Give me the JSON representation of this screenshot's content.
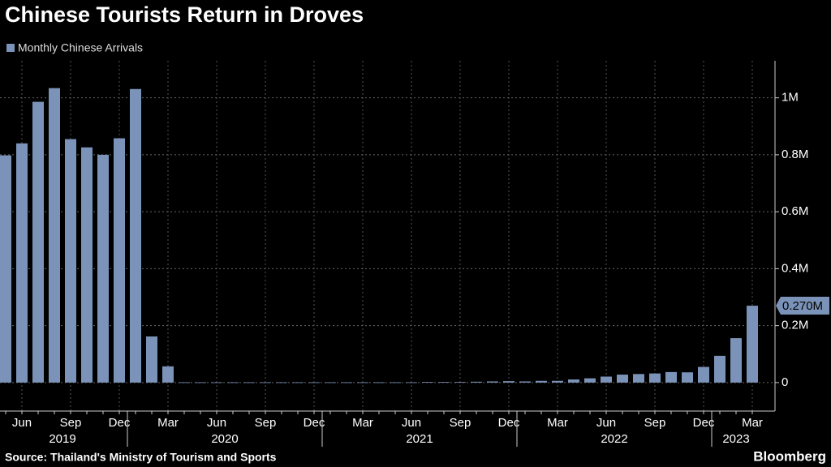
{
  "chart_data": {
    "type": "bar",
    "title": "Chinese Tourists Return in Droves",
    "source": "Source: Thailand's Ministry of Tourism and Sports",
    "logo": "Bloomberg",
    "categories": [
      null,
      "Jun",
      null,
      null,
      "Sep",
      null,
      null,
      "Dec",
      null,
      null,
      "Mar",
      null,
      null,
      "Jun",
      null,
      null,
      "Sep",
      null,
      null,
      "Dec",
      null,
      null,
      "Mar",
      null,
      null,
      "Jun",
      null,
      null,
      "Sep",
      null,
      null,
      "Dec",
      null,
      null,
      "Mar",
      null,
      null,
      "Jun",
      null,
      null,
      "Sep",
      null,
      null,
      "Dec",
      null,
      null,
      "Mar"
    ],
    "groups": [
      {
        "label": "2019",
        "count": 8
      },
      {
        "label": "2020",
        "count": 12
      },
      {
        "label": "2021",
        "count": 12
      },
      {
        "label": "2022",
        "count": 12
      },
      {
        "label": "2023",
        "count": 3
      }
    ],
    "series": [
      {
        "name": "Monthly Chinese Arrivals",
        "color": "#7b93b8",
        "values": [
          798000,
          840000,
          986000,
          1034000,
          855000,
          826000,
          800000,
          858000,
          1031000,
          162000,
          57000,
          1000,
          1000,
          1000,
          1000,
          1000,
          1000,
          1000,
          1000,
          1000,
          1000,
          1000,
          1000,
          1000,
          1000,
          1000,
          2000,
          2000,
          2000,
          3000,
          4000,
          5000,
          4000,
          6000,
          6000,
          11000,
          15000,
          21000,
          28000,
          30000,
          32000,
          37000,
          36000,
          55000,
          94000,
          156000,
          270000
        ],
        "value_labels": [
          null,
          null,
          null,
          null,
          null,
          null,
          null,
          null,
          null,
          null,
          null,
          null,
          null,
          null,
          null,
          null,
          null,
          null,
          null,
          null,
          null,
          null,
          null,
          null,
          null,
          null,
          null,
          null,
          null,
          null,
          null,
          null,
          null,
          null,
          null,
          null,
          null,
          null,
          null,
          null,
          null,
          null,
          null,
          null,
          null,
          null,
          "0.270M"
        ]
      }
    ],
    "ylim": [
      -100000,
      1130000
    ],
    "yticks": [
      0,
      {
        "value": 200000,
        "label": "0.2M"
      },
      {
        "value": 400000,
        "label": "0.4M"
      },
      {
        "value": 600000,
        "label": "0.6M"
      },
      {
        "value": 800000,
        "label": "0.8M"
      },
      {
        "value": 1000000,
        "label": "1M"
      }
    ],
    "grid": true,
    "background": "#000000"
  }
}
